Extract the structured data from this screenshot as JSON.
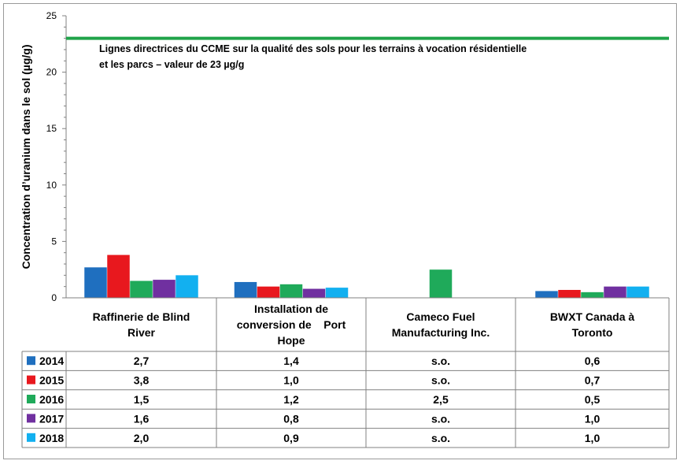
{
  "chart_data": {
    "type": "bar",
    "ylabel": "Concentration d’uranium dans le sol (µg/g)",
    "ylim": [
      0,
      25
    ],
    "yticks": [
      0,
      5,
      10,
      15,
      20,
      25
    ],
    "guideline": {
      "value": 23,
      "color": "#20a34a",
      "label_line1": "Lignes directrices du CCME sur la qualité des sols pour les terrains à vocation résidentielle",
      "label_line2": "et les parcs – valeur de 23 µg/g"
    },
    "categories": [
      [
        "Raffinerie de Blind",
        "River"
      ],
      [
        "Installation de",
        "conversion de    Port",
        "Hope"
      ],
      [
        "Cameco Fuel",
        "Manufacturing Inc."
      ],
      [
        "BWXT Canada à",
        "Toronto"
      ]
    ],
    "series": [
      {
        "name": "2014",
        "color": "#1f6fbf",
        "values": [
          2.7,
          1.4,
          null,
          0.6
        ],
        "labels": [
          "2,7",
          "1,4",
          "s.o.",
          "0,6"
        ]
      },
      {
        "name": "2015",
        "color": "#e8181e",
        "values": [
          3.8,
          1.0,
          null,
          0.7
        ],
        "labels": [
          "3,8",
          "1,0",
          "s.o.",
          "0,7"
        ]
      },
      {
        "name": "2016",
        "color": "#1faa5a",
        "values": [
          1.5,
          1.2,
          2.5,
          0.5
        ],
        "labels": [
          "1,5",
          "1,2",
          "2,5",
          "0,5"
        ]
      },
      {
        "name": "2017",
        "color": "#7030a0",
        "values": [
          1.6,
          0.8,
          null,
          1.0
        ],
        "labels": [
          "1,6",
          "0,8",
          "s.o.",
          "1,0"
        ]
      },
      {
        "name": "2018",
        "color": "#12b0f0",
        "values": [
          2.0,
          0.9,
          null,
          1.0
        ],
        "labels": [
          "2,0",
          "0,9",
          "s.o.",
          "1,0"
        ]
      }
    ]
  }
}
